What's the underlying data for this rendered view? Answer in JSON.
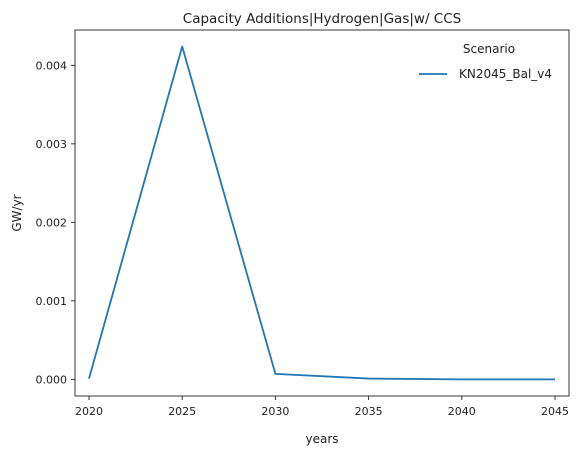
{
  "chart_data": {
    "type": "line",
    "title": "Capacity Additions|Hydrogen|Gas|w/ CCS",
    "xlabel": "years",
    "ylabel": "GW/yr",
    "x": [
      2020,
      2025,
      2030,
      2035,
      2040,
      2045
    ],
    "xticks": [
      "2020",
      "2025",
      "2030",
      "2035",
      "2040",
      "2045"
    ],
    "yticks": [
      "0.000",
      "0.001",
      "0.002",
      "0.003",
      "0.004"
    ],
    "ylim": [
      -0.000212,
      0.00445
    ],
    "xlim": [
      2019.25,
      2045.75
    ],
    "legend_title": "Scenario",
    "legend_position": "top-right",
    "grid": false,
    "series": [
      {
        "name": "KN2045_Bal_v4",
        "color": "#1f77b4",
        "values": [
          1e-05,
          0.00424,
          7e-05,
          1e-05,
          0.0,
          0.0
        ]
      }
    ]
  }
}
